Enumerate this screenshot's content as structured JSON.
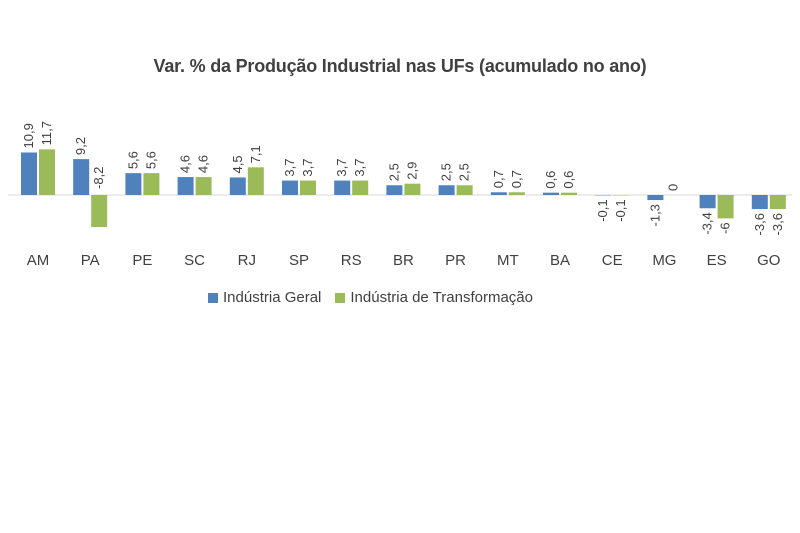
{
  "chart_data": {
    "type": "bar",
    "title": "Var. % da Produção Industrial nas UFs (acumulado no ano)",
    "categories": [
      "AM",
      "PA",
      "PE",
      "SC",
      "RJ",
      "SP",
      "RS",
      "BR",
      "PR",
      "MT",
      "BA",
      "CE",
      "MG",
      "ES",
      "GO"
    ],
    "series": [
      {
        "name": "Indústria Geral",
        "color": "#4F81BD",
        "values": [
          10.9,
          9.2,
          5.6,
          4.6,
          4.5,
          3.7,
          3.7,
          2.5,
          2.5,
          0.7,
          0.6,
          -0.1,
          -1.3,
          -3.4,
          -3.6
        ]
      },
      {
        "name": "Indústria de Transformação",
        "color": "#9BBB59",
        "values": [
          11.7,
          -8.2,
          5.6,
          4.6,
          7.1,
          3.7,
          3.7,
          2.9,
          2.5,
          0.7,
          0.6,
          -0.1,
          0,
          -6,
          -3.6
        ]
      }
    ],
    "data_labels": true,
    "decimal_separator": ",",
    "legend_position": "bottom",
    "grid": false,
    "xlabel": "",
    "ylabel": ""
  }
}
